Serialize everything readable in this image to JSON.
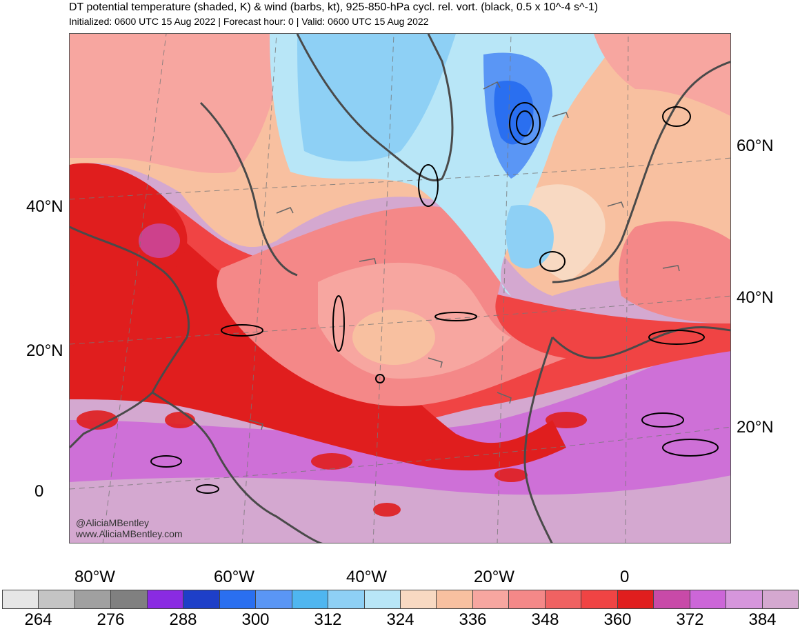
{
  "header": {
    "title": "DT potential temperature (shaded, K) & wind (barbs, kt), 925-850-hPa cycl. rel. vort. (black, 0.5 x 10^-4 s^-1)",
    "subtitle": "Initialized: 0600 UTC 15 Aug 2022 | Forecast hour: 0 | Valid: 0600 UTC 15 Aug 2022"
  },
  "watermark": {
    "handle": "@AliciaMBentley",
    "url": "www.AliciaMBentley.com"
  },
  "axes": {
    "left_lat_labels": [
      "40°N",
      "20°N",
      "0"
    ],
    "right_lat_labels": [
      "60°N",
      "40°N",
      "20°N"
    ],
    "bottom_lon_labels": [
      "80°W",
      "60°W",
      "40°W",
      "20°W",
      "0"
    ]
  },
  "colorbar": {
    "colors": [
      "#e6e6e6",
      "#c4c4c4",
      "#a0a0a0",
      "#808080",
      "#8a2be2",
      "#1e3fc8",
      "#2a6ff0",
      "#5a96f5",
      "#4fb6f0",
      "#8ed0f5",
      "#b8e6f7",
      "#f8d9c2",
      "#f8c0a0",
      "#f7a6a0",
      "#f48888",
      "#f06262",
      "#f04444",
      "#e01e1e",
      "#c84aa8",
      "#cc66d8",
      "#d696dc",
      "#d4a8d0"
    ],
    "labels": [
      "264",
      "276",
      "288",
      "300",
      "312",
      "324",
      "336",
      "348",
      "360",
      "372",
      "384"
    ]
  }
}
